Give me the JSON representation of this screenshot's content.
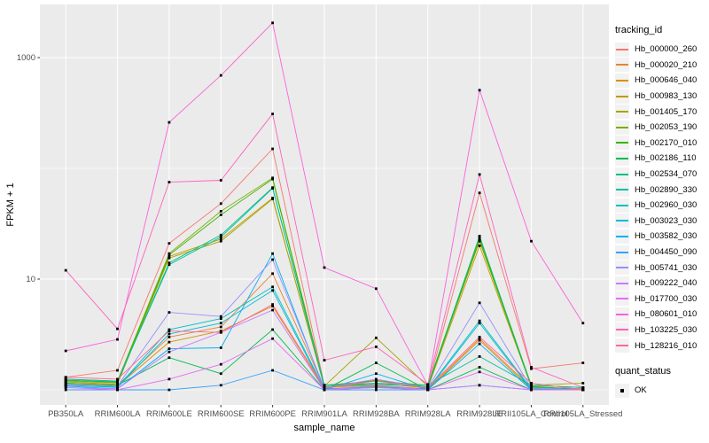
{
  "figure": {
    "background": "#FFFFFF",
    "panel_color": "#EBEBEB",
    "grid_color": "#FFFFFF",
    "axis_text_color": "#4D4D4D",
    "tick_color": "#333333",
    "text_color": "#000000",
    "legend_key_color": "#F2F2F2"
  },
  "chart_data": {
    "type": "line",
    "title": "",
    "xlabel": "sample_name",
    "ylabel": "FPKM + 1",
    "x_categories": [
      "PB350LA",
      "RRIM600LA",
      "RRIM600LE",
      "RRIM600SE",
      "RRIM600PE",
      "RRIM901LA",
      "RRIM928BA",
      "RRIM928LA",
      "RRIM928LE",
      "RRII105LA_Control",
      "RRII105LA_Stressed"
    ],
    "y_scale": "log10",
    "y_major_ticks": [
      {
        "label": "10",
        "value": 10
      },
      {
        "label": "1000",
        "value": 1000
      }
    ],
    "y_minor_gridlines": [
      1,
      100
    ],
    "ylim_log10": [
      -0.136,
      3.48
    ],
    "grid": true,
    "legend_position": "right",
    "point_shape": "square",
    "point_color": "#000000",
    "series": [
      {
        "name": "Hb_000000_260",
        "color": "#F8766D",
        "values": [
          1.3,
          1.5,
          21,
          48,
          150,
          1.1,
          1.2,
          1.05,
          60,
          1.55,
          1.75
        ]
      },
      {
        "name": "Hb_000020_210",
        "color": "#EA8331",
        "values": [
          1.15,
          1.1,
          3.0,
          3.7,
          11.2,
          1.05,
          1.1,
          1.02,
          2.9,
          1.05,
          1.02
        ]
      },
      {
        "name": "Hb_000646_040",
        "color": "#D89000",
        "values": [
          1.12,
          1.08,
          2.7,
          3.4,
          5.7,
          1.02,
          1.08,
          1.0,
          2.8,
          1.02,
          1.0
        ]
      },
      {
        "name": "Hb_000983_130",
        "color": "#C09B00",
        "values": [
          1.18,
          1.12,
          16,
          23,
          54,
          1.06,
          1.15,
          1.04,
          20,
          1.08,
          1.0
        ]
      },
      {
        "name": "Hb_001405_170",
        "color": "#A3A500",
        "values": [
          1.2,
          1.15,
          15.5,
          22,
          53,
          1.08,
          2.95,
          1.08,
          22,
          1.1,
          1.15
        ]
      },
      {
        "name": "Hb_002053_190",
        "color": "#7CAE00",
        "values": [
          1.25,
          1.2,
          17,
          41,
          82,
          1.1,
          1.2,
          1.1,
          24,
          1.1,
          1.05
        ]
      },
      {
        "name": "Hb_002170_010",
        "color": "#39B600",
        "values": [
          1.22,
          1.17,
          16.5,
          38,
          80,
          1.06,
          1.22,
          1.06,
          23,
          1.06,
          1.02
        ]
      },
      {
        "name": "Hb_002186_110",
        "color": "#00BB4E",
        "values": [
          1.15,
          1.1,
          1.95,
          1.4,
          3.5,
          1.0,
          1.75,
          1.0,
          1.6,
          1.0,
          1.0
        ]
      },
      {
        "name": "Hb_002534_070",
        "color": "#00BF7D",
        "values": [
          1.22,
          1.18,
          14,
          25,
          67,
          1.07,
          1.12,
          1.07,
          24.5,
          1.07,
          1.0
        ]
      },
      {
        "name": "Hb_002890_330",
        "color": "#00C1A3",
        "values": [
          1.25,
          1.2,
          13.5,
          24,
          66,
          1.1,
          1.15,
          1.1,
          2.0,
          1.1,
          1.05
        ]
      },
      {
        "name": "Hb_002960_030",
        "color": "#00BFC4",
        "values": [
          1.12,
          1.06,
          3.5,
          4.4,
          8.5,
          1.02,
          1.06,
          1.02,
          4.2,
          1.02,
          1.0
        ]
      },
      {
        "name": "Hb_003023_030",
        "color": "#00BBDA",
        "values": [
          1.1,
          1.05,
          3.2,
          4.0,
          7.9,
          1.0,
          1.05,
          1.0,
          4.0,
          1.0,
          1.0
        ]
      },
      {
        "name": "Hb_003582_030",
        "color": "#00B0F6",
        "values": [
          1.08,
          1.02,
          2.35,
          2.4,
          17,
          1.0,
          1.4,
          1.0,
          2.6,
          1.0,
          1.0
        ]
      },
      {
        "name": "Hb_004450_090",
        "color": "#35A2FF",
        "values": [
          1.0,
          1.0,
          1.0,
          1.1,
          1.5,
          1.0,
          1.0,
          1.0,
          1.1,
          1.0,
          1.0
        ]
      },
      {
        "name": "Hb_005741_030",
        "color": "#9590FF",
        "values": [
          1.1,
          1.08,
          5.0,
          4.6,
          15,
          1.04,
          1.25,
          1.04,
          6.1,
          1.04,
          1.0
        ]
      },
      {
        "name": "Hb_009222_040",
        "color": "#C77CFF",
        "values": [
          1.05,
          1.02,
          2.2,
          3.3,
          5.25,
          1.0,
          1.1,
          1.0,
          1.1,
          1.0,
          1.0
        ]
      },
      {
        "name": "Hb_017700_030",
        "color": "#E76BF3",
        "values": [
          1.05,
          1.0,
          1.25,
          1.7,
          2.9,
          1.0,
          1.05,
          1.0,
          1.45,
          1.0,
          1.0
        ]
      },
      {
        "name": "Hb_080601_010",
        "color": "#FA62DB",
        "values": [
          2.25,
          2.85,
          260,
          690,
          2060,
          12.7,
          8.2,
          1.1,
          508,
          22,
          4.0
        ]
      },
      {
        "name": "Hb_103225_030",
        "color": "#FF62BC",
        "values": [
          12,
          3.55,
          75,
          78,
          310,
          1.85,
          2.45,
          1.12,
          88,
          1.6,
          1.05
        ]
      },
      {
        "name": "Hb_128216_010",
        "color": "#FF6A98",
        "values": [
          1.3,
          1.25,
          3.4,
          3.3,
          5.9,
          1.05,
          1.2,
          1.05,
          3.0,
          1.15,
          1.0
        ]
      }
    ],
    "legends": {
      "tracking": {
        "title": "tracking_id"
      },
      "quant": {
        "title": "quant_status",
        "items": [
          {
            "label": "OK"
          }
        ]
      }
    }
  }
}
